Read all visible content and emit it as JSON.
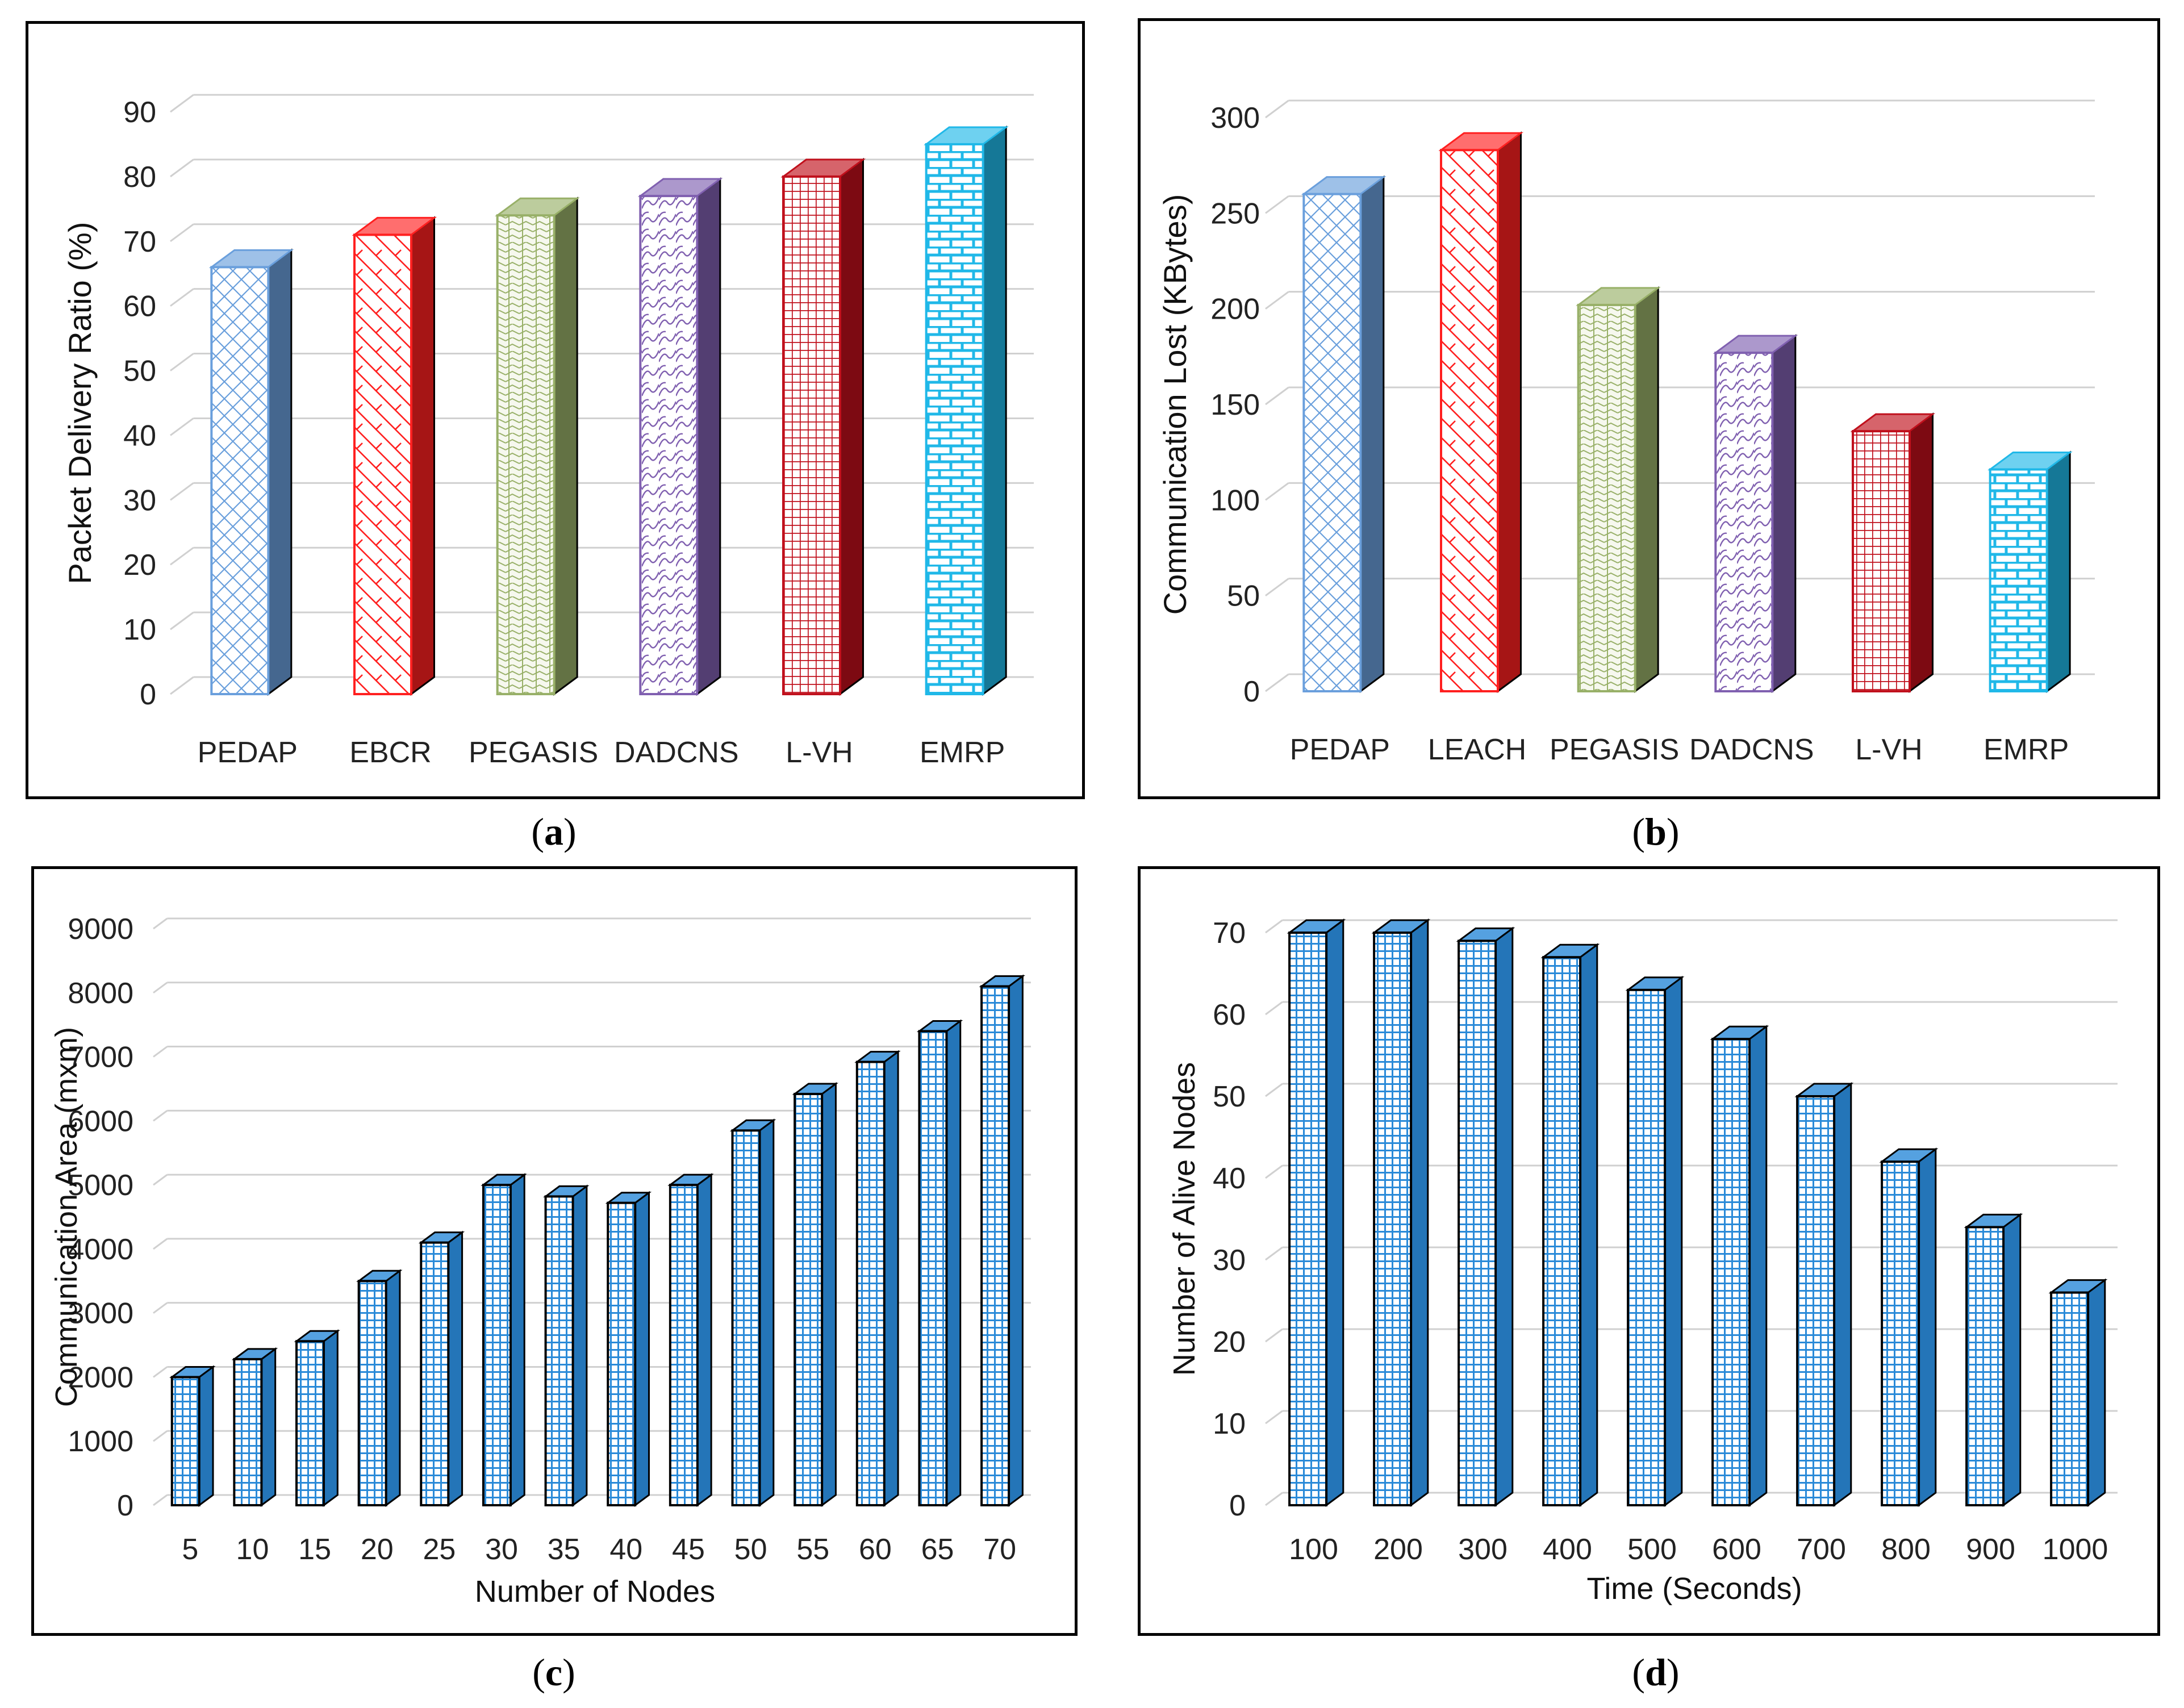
{
  "chart_data": [
    {
      "id": "a",
      "type": "bar",
      "caption": "a",
      "title": "",
      "xlabel": "",
      "ylabel": "Packet Delivery Ratio (%)",
      "ylim": [
        0,
        90
      ],
      "yticks": [
        0,
        10,
        20,
        30,
        40,
        50,
        60,
        70,
        80,
        90
      ],
      "grid": true,
      "categories": [
        "PEDAP",
        "EBCR",
        "PEGASIS",
        "DADCNS",
        "L-VH",
        "EMRP"
      ],
      "values": [
        66,
        71,
        74,
        77,
        80,
        85
      ],
      "colors": [
        "#6a9fdc",
        "#ff2020",
        "#98b068",
        "#8060b0",
        "#c0101c",
        "#20b8e8"
      ]
    },
    {
      "id": "b",
      "type": "bar",
      "caption": "b",
      "title": "",
      "xlabel": "",
      "ylabel": "Communication Lost (KBytes)",
      "ylim": [
        0,
        300
      ],
      "yticks": [
        0,
        50,
        100,
        150,
        200,
        250,
        300
      ],
      "grid": true,
      "categories": [
        "PEDAP",
        "LEACH",
        "PEGASIS",
        "DADCNS",
        "L-VH",
        "EMRP"
      ],
      "values": [
        260,
        283,
        202,
        177,
        136,
        116
      ],
      "colors": [
        "#6a9fdc",
        "#ff2020",
        "#98b068",
        "#8060b0",
        "#c0101c",
        "#20b8e8"
      ]
    },
    {
      "id": "c",
      "type": "bar",
      "caption": "c",
      "title": "",
      "xlabel": "Number of Nodes",
      "ylabel": "Communication Area (mxm)",
      "ylim": [
        0,
        9000
      ],
      "yticks": [
        0,
        1000,
        2000,
        3000,
        4000,
        5000,
        6000,
        7000,
        8000,
        9000
      ],
      "grid": true,
      "categories": [
        "5",
        "10",
        "15",
        "20",
        "25",
        "30",
        "35",
        "40",
        "45",
        "50",
        "55",
        "60",
        "65",
        "70"
      ],
      "values": [
        2000,
        2280,
        2560,
        3500,
        4100,
        5000,
        4820,
        4720,
        5000,
        5850,
        6420,
        6920,
        7400,
        8100
      ],
      "colors": [
        "#2a8ad8"
      ]
    },
    {
      "id": "d",
      "type": "bar",
      "caption": "d",
      "title": "",
      "xlabel": "Time (Seconds)",
      "ylabel": "Number of Alive Nodes",
      "ylim": [
        0,
        70
      ],
      "yticks": [
        0,
        10,
        20,
        30,
        40,
        50,
        60,
        70
      ],
      "grid": true,
      "categories": [
        "100",
        "200",
        "300",
        "400",
        "500",
        "600",
        "700",
        "800",
        "900",
        "1000"
      ],
      "values": [
        70,
        70,
        69,
        67,
        63,
        57,
        50,
        42,
        34,
        26
      ],
      "colors": [
        "#2a8ad8"
      ]
    }
  ]
}
